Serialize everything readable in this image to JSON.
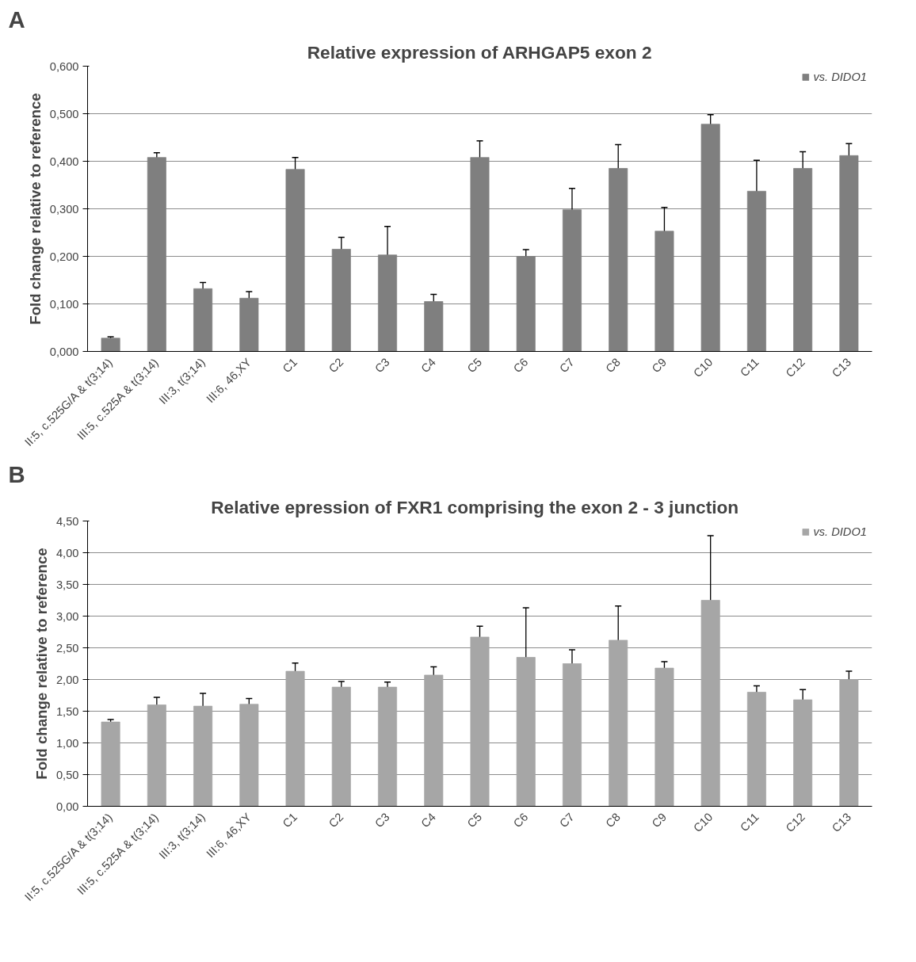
{
  "chart_data": [
    {
      "type": "bar",
      "title": "Relative expression of ARHGAP5 exon 2",
      "ylabel": "Fold change relative to reference",
      "annotations": [
        "A"
      ],
      "categories": [
        "II:5, c.525G/A & t(3;14)",
        "III:5, c.525A & t(3;14)",
        "III:3, t(3;14)",
        "III:6, 46,XY",
        "C1",
        "C2",
        "C3",
        "C4",
        "C5",
        "C6",
        "C7",
        "C8",
        "C9",
        "C10",
        "C11",
        "C12",
        "C13"
      ],
      "series": [
        {
          "name": "vs. DIDO1",
          "color": "#7f7f7f",
          "values": [
            0.028,
            0.408,
            0.132,
            0.112,
            0.383,
            0.215,
            0.203,
            0.105,
            0.408,
            0.2,
            0.298,
            0.385,
            0.253,
            0.478,
            0.337,
            0.385,
            0.412
          ],
          "errors": [
            0.003,
            0.01,
            0.013,
            0.014,
            0.025,
            0.025,
            0.06,
            0.015,
            0.035,
            0.014,
            0.045,
            0.05,
            0.05,
            0.02,
            0.065,
            0.035,
            0.025
          ]
        }
      ],
      "ylim": [
        0,
        0.6
      ],
      "yticks": [
        {
          "value": 0,
          "label": "0,000"
        },
        {
          "value": 0.1,
          "label": "0,100"
        },
        {
          "value": 0.2,
          "label": "0,200"
        },
        {
          "value": 0.3,
          "label": "0,300"
        },
        {
          "value": 0.4,
          "label": "0,400"
        },
        {
          "value": 0.5,
          "label": "0,500"
        },
        {
          "value": 0.6,
          "label": "0,600"
        }
      ],
      "grid": "y",
      "legend": "top right"
    },
    {
      "type": "bar",
      "title": "Relative epression of FXR1 comprising the exon 2 - 3   junction",
      "ylabel": "Fold change relative to reference",
      "annotations": [
        "B"
      ],
      "categories": [
        "II:5, c.525G/A & t(3;14)",
        "III:5, c.525A & t(3;14)",
        "III:3, t(3;14)",
        "III:6, 46,XY",
        "C1",
        "C2",
        "C3",
        "C4",
        "C5",
        "C6",
        "C7",
        "C8",
        "C9",
        "C10",
        "C11",
        "C12",
        "C13"
      ],
      "series": [
        {
          "name": "vs. DIDO1",
          "color": "#a6a6a6",
          "values": [
            1.33,
            1.6,
            1.58,
            1.61,
            2.13,
            1.88,
            1.88,
            2.07,
            2.67,
            2.35,
            2.25,
            2.62,
            2.18,
            3.25,
            1.8,
            1.68,
            2.0
          ],
          "errors": [
            0.04,
            0.12,
            0.2,
            0.09,
            0.13,
            0.09,
            0.08,
            0.13,
            0.17,
            0.78,
            0.22,
            0.54,
            0.1,
            1.02,
            0.1,
            0.16,
            0.13
          ]
        }
      ],
      "ylim": [
        0,
        4.5
      ],
      "yticks": [
        {
          "value": 0,
          "label": "0,00"
        },
        {
          "value": 0.5,
          "label": "0,50"
        },
        {
          "value": 1,
          "label": "1,00"
        },
        {
          "value": 1.5,
          "label": "1,50"
        },
        {
          "value": 2,
          "label": "2,00"
        },
        {
          "value": 2.5,
          "label": "2,50"
        },
        {
          "value": 3,
          "label": "3,00"
        },
        {
          "value": 3.5,
          "label": "3,50"
        },
        {
          "value": 4,
          "label": "4,00"
        },
        {
          "value": 4.5,
          "label": "4,50"
        }
      ],
      "grid": "y",
      "legend": "top right"
    }
  ]
}
